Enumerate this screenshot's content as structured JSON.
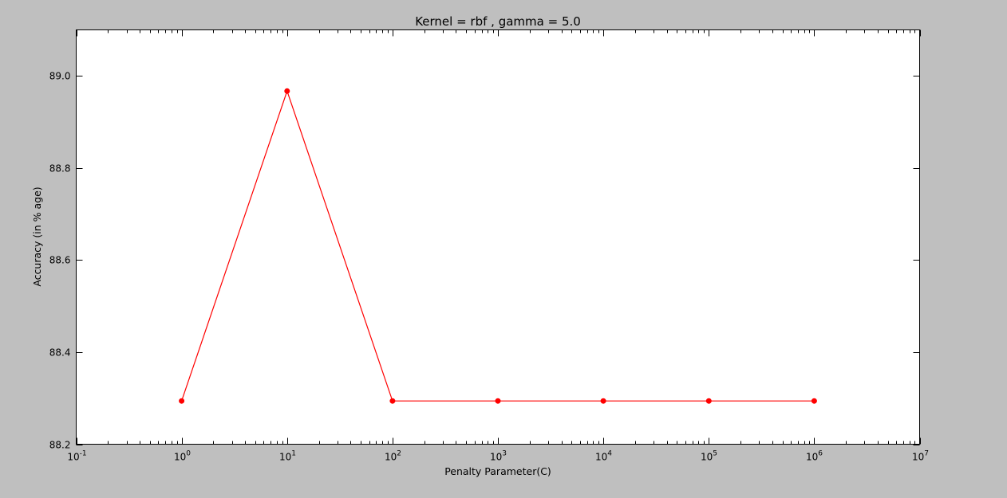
{
  "chart_data": {
    "type": "line",
    "title": "Kernel = rbf , gamma = 5.0",
    "xlabel": "Penalty Parameter(C)",
    "ylabel": "Accuracy (in % age)",
    "x_scale": "log",
    "xlim": [
      0.1,
      10000000
    ],
    "ylim": [
      88.2,
      89.1
    ],
    "x_ticks": [
      {
        "base": "10",
        "exp": "-1",
        "value": 0.1
      },
      {
        "base": "10",
        "exp": "0",
        "value": 1
      },
      {
        "base": "10",
        "exp": "1",
        "value": 10
      },
      {
        "base": "10",
        "exp": "2",
        "value": 100
      },
      {
        "base": "10",
        "exp": "3",
        "value": 1000
      },
      {
        "base": "10",
        "exp": "4",
        "value": 10000
      },
      {
        "base": "10",
        "exp": "5",
        "value": 100000
      },
      {
        "base": "10",
        "exp": "6",
        "value": 1000000
      },
      {
        "base": "10",
        "exp": "7",
        "value": 10000000
      }
    ],
    "y_ticks": [
      "88.2",
      "88.4",
      "88.6",
      "88.8",
      "89.0"
    ],
    "grid": false,
    "series": [
      {
        "color": "#ff0000",
        "marker": "circle",
        "x": [
          1,
          10,
          100,
          1000,
          10000,
          100000,
          1000000
        ],
        "y": [
          88.294,
          88.967,
          88.294,
          88.294,
          88.294,
          88.294,
          88.294
        ]
      }
    ]
  }
}
